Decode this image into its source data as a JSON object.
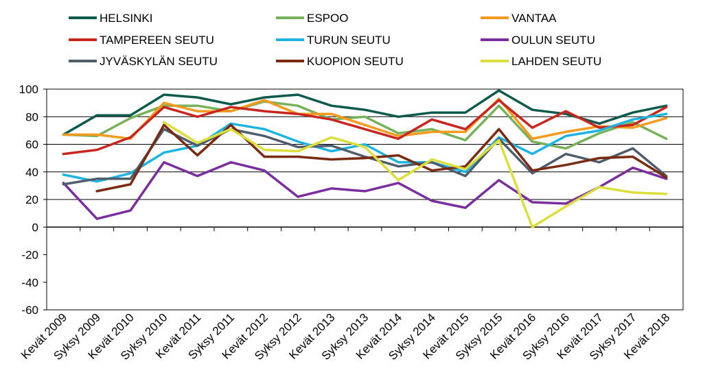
{
  "chart_data": {
    "type": "line",
    "title": "",
    "xlabel": "",
    "ylabel": "",
    "ylim": [
      -60,
      100
    ],
    "yticks": [
      100,
      80,
      60,
      40,
      20,
      0,
      -20,
      -40,
      -60
    ],
    "grid": true,
    "legend_position": "top",
    "categories": [
      "Kevät 2009",
      "Syksy 2009",
      "Kevät 2010",
      "Syksy 2010",
      "Kevät 2011",
      "Syksy 2011",
      "Kevät 2012",
      "Syksy 2012",
      "Kevät 2013",
      "Syksy 2013",
      "Kevät 2014",
      "Syksy 2014",
      "Kevät 2015",
      "Syksy 2015",
      "Kevät 2016",
      "Syksy 2016",
      "Kevät 2017",
      "Syksy 2017",
      "Kevät 2018"
    ],
    "series": [
      {
        "name": "HELSINKI",
        "color": "#0b5a4b",
        "values": [
          67,
          81,
          81,
          96,
          94,
          89,
          94,
          96,
          88,
          85,
          80,
          83,
          83,
          99,
          85,
          82,
          75,
          83,
          88
        ]
      },
      {
        "name": "ESPOO",
        "color": "#77b15a",
        "values": [
          67,
          66,
          79,
          88,
          88,
          84,
          91,
          88,
          78,
          80,
          68,
          71,
          63,
          88,
          62,
          57,
          68,
          76,
          64
        ]
      },
      {
        "name": "VANTAA",
        "color": "#f39a1f",
        "values": [
          67,
          67,
          64,
          90,
          84,
          84,
          92,
          82,
          82,
          74,
          66,
          69,
          69,
          93,
          64,
          69,
          73,
          72,
          79
        ]
      },
      {
        "name": "TAMPEREEN SEUTU",
        "color": "#c8251f",
        "values": [
          53,
          56,
          65,
          87,
          80,
          87,
          84,
          82,
          78,
          71,
          64,
          78,
          71,
          92,
          72,
          84,
          72,
          74,
          87
        ]
      },
      {
        "name": "TURUN SEUTU",
        "color": "#1db4e2",
        "values": [
          38,
          33,
          39,
          54,
          59,
          75,
          71,
          62,
          55,
          60,
          47,
          47,
          40,
          65,
          53,
          66,
          70,
          78,
          82
        ]
      },
      {
        "name": "OULUN SEUTU",
        "color": "#7a2e9e",
        "values": [
          32,
          6,
          12,
          47,
          37,
          47,
          41,
          22,
          28,
          26,
          32,
          19,
          14,
          34,
          18,
          17,
          29,
          43,
          35
        ]
      },
      {
        "name": "JYVÄSKYLÄN SEUTU",
        "color": "#4e5d6c",
        "values": [
          31,
          35,
          35,
          71,
          59,
          71,
          66,
          58,
          59,
          51,
          44,
          47,
          37,
          64,
          39,
          53,
          47,
          57,
          37
        ]
      },
      {
        "name": "KUOPION SEUTU",
        "color": "#7b2a12",
        "values": [
          null,
          26,
          31,
          74,
          52,
          74,
          51,
          51,
          49,
          50,
          52,
          41,
          44,
          71,
          41,
          45,
          50,
          51,
          36
        ]
      },
      {
        "name": "LAHDEN SEUTU",
        "color": "#dcde3c",
        "values": [
          null,
          null,
          null,
          76,
          61,
          71,
          56,
          55,
          65,
          58,
          34,
          49,
          42,
          63,
          0,
          15,
          29,
          25,
          24
        ]
      }
    ]
  }
}
